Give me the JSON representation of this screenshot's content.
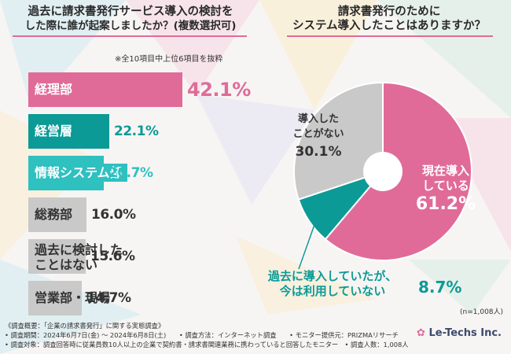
{
  "left": {
    "title_line1": "過去に請求書発行サービス導入の検討を",
    "title_line2": "した際に誰が起案しましたか？(複数選択可)",
    "note": "※全10項目中上位6項目を抜粋"
  },
  "right": {
    "title_line1": "請求書発行のために",
    "title_line2": "システム導入したことはありますか？",
    "n_label": "(n=1,008人)"
  },
  "footer": {
    "line1": "《調査概要：「企業の請求書発行」に関する実態調査》",
    "line2": "• 調査期間：2024年6月7日(金) ～ 2024年6月8日(土)　　• 調査方法：インターネット調査　　• モニター提供元：PRIZMAリサーチ",
    "line3": "• 調査対象：調査回答時に従業員数10人以上の企業で契約書・請求書関連業務に携わっていると回答したモニター　• 調査人数：1,008人",
    "logo": "Le-Techs Inc."
  },
  "colors": {
    "pink": "#e06b98",
    "teal": "#0c9a96",
    "turquoise": "#2fc0c0",
    "gray": "#c9c9c9",
    "title_underline": "#e06b98"
  },
  "chart_data": [
    {
      "type": "bar",
      "orientation": "horizontal",
      "categories": [
        "経理部",
        "経営層",
        "情報システム部",
        "総務部",
        "過去に検討したことはない",
        "営業部・現場"
      ],
      "category_lines": [
        [
          "経理部"
        ],
        [
          "経営層"
        ],
        [
          "情報システム部"
        ],
        [
          "総務部"
        ],
        [
          "過去に検討した",
          "ことはない"
        ],
        [
          "営業部・現場"
        ]
      ],
      "values": [
        42.1,
        22.1,
        20.7,
        16.0,
        15.6,
        14.7
      ],
      "value_labels": [
        "42.1%",
        "22.1%",
        "20.7%",
        "16.0%",
        "15.6%",
        "14.7%"
      ],
      "unit": "%",
      "bar_colors": [
        "#e06b98",
        "#0c9a96",
        "#2fc0c0",
        "#c9c9c9",
        "#c9c9c9",
        "#c9c9c9"
      ],
      "value_colors": [
        "#e06b98",
        "#0c9a96",
        "#2fc0c0",
        "#333333",
        "#333333",
        "#333333"
      ],
      "label_colors": [
        "#ffffff",
        "#ffffff",
        "#ffffff",
        "#333333",
        "#333333",
        "#333333"
      ]
    },
    {
      "type": "pie",
      "style": "donut",
      "slices": [
        {
          "label": "現在導入している",
          "label_lines": [
            "現在導入",
            "している"
          ],
          "value": 61.2,
          "value_label": "61.2%",
          "color": "#e06b98",
          "text_color": "#ffffff"
        },
        {
          "label": "過去に導入していたが、今は利用していない",
          "label_lines": [
            "過去に導入していたが、",
            "今は利用していない"
          ],
          "value": 8.7,
          "value_label": "8.7%",
          "color": "#0c9a96",
          "text_color": "#0c9a96"
        },
        {
          "label": "導入したことがない",
          "label_lines": [
            "導入した",
            "ことがない"
          ],
          "value": 30.1,
          "value_label": "30.1%",
          "color": "#c9c9c9",
          "text_color": "#333333"
        }
      ]
    }
  ]
}
